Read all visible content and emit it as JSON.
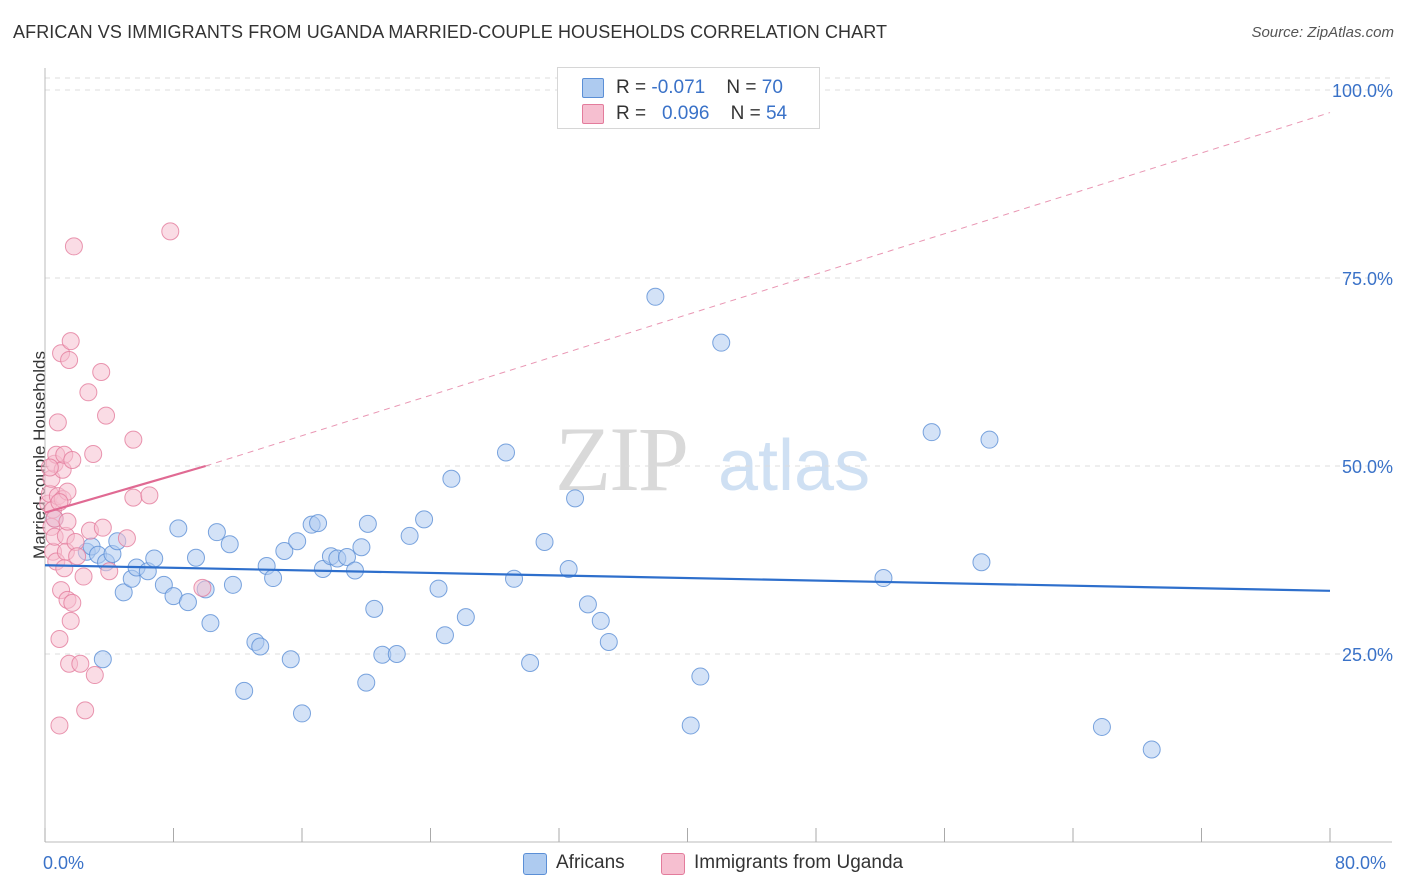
{
  "title": "AFRICAN VS IMMIGRANTS FROM UGANDA MARRIED-COUPLE HOUSEHOLDS CORRELATION CHART",
  "source": "Source: ZipAtlas.com",
  "watermark": {
    "zip": "ZIP",
    "atlas": "atlas"
  },
  "legend_top": [
    {
      "r_label": "R = ",
      "r_value": "-0.071",
      "n_label": "N = ",
      "n_value": "70",
      "color": "#aecbf0",
      "border": "#5b8fd6"
    },
    {
      "r_label": "R = ",
      "r_value": "0.096",
      "n_label": "N = ",
      "n_value": "54",
      "color": "#f6bfd0",
      "border": "#e37c9c"
    }
  ],
  "legend_bottom": [
    {
      "label": "Africans",
      "color": "#aecbf0",
      "border": "#5b8fd6"
    },
    {
      "label": "Immigrants from Uganda",
      "color": "#f6bfd0",
      "border": "#e37c9c"
    }
  ],
  "chart_data": {
    "type": "scatter",
    "title": "AFRICAN VS IMMIGRANTS FROM UGANDA MARRIED-COUPLE HOUSEHOLDS CORRELATION CHART",
    "xlabel": "",
    "ylabel": "Married-couple Households",
    "xlim": [
      0,
      80
    ],
    "ylim": [
      0,
      105
    ],
    "x_tick_labels": [
      "0.0%",
      "80.0%"
    ],
    "y_ticks": [
      25,
      50,
      75,
      100
    ],
    "y_tick_labels": [
      "25.0%",
      "50.0%",
      "75.0%",
      "100.0%"
    ],
    "grid": true,
    "legend": "top-center",
    "series": [
      {
        "name": "Africans",
        "color": "#5b8fd6",
        "fill": "#aecbf0",
        "R": -0.071,
        "N": 70,
        "trend": {
          "x": [
            0,
            80
          ],
          "y": [
            36.8,
            33.4
          ],
          "style": "solid",
          "color": "#2e6fcc"
        },
        "points": [
          [
            0.6,
            43.0
          ],
          [
            2.6,
            38.6
          ],
          [
            2.9,
            39.3
          ],
          [
            3.3,
            38.2
          ],
          [
            3.8,
            37.2
          ],
          [
            4.2,
            38.3
          ],
          [
            4.5,
            40.0
          ],
          [
            4.9,
            33.2
          ],
          [
            5.4,
            35.0
          ],
          [
            5.7,
            36.5
          ],
          [
            6.4,
            36.0
          ],
          [
            6.8,
            37.7
          ],
          [
            7.4,
            34.2
          ],
          [
            8.0,
            32.7
          ],
          [
            8.3,
            41.7
          ],
          [
            8.9,
            31.9
          ],
          [
            9.4,
            37.8
          ],
          [
            10.3,
            29.1
          ],
          [
            10.7,
            41.2
          ],
          [
            11.5,
            39.6
          ],
          [
            11.7,
            34.2
          ],
          [
            12.4,
            20.1
          ],
          [
            13.1,
            26.6
          ],
          [
            13.4,
            26.0
          ],
          [
            13.8,
            36.7
          ],
          [
            14.2,
            35.1
          ],
          [
            14.9,
            38.7
          ],
          [
            15.3,
            24.3
          ],
          [
            15.7,
            40.0
          ],
          [
            16.6,
            42.2
          ],
          [
            17.0,
            42.4
          ],
          [
            17.3,
            36.3
          ],
          [
            17.8,
            38.0
          ],
          [
            18.2,
            37.7
          ],
          [
            18.8,
            37.9
          ],
          [
            19.3,
            36.1
          ],
          [
            19.7,
            39.2
          ],
          [
            20.1,
            42.3
          ],
          [
            20.5,
            31.0
          ],
          [
            21.0,
            24.9
          ],
          [
            21.9,
            25.0
          ],
          [
            22.7,
            40.7
          ],
          [
            23.6,
            42.9
          ],
          [
            24.5,
            33.7
          ],
          [
            24.9,
            27.5
          ],
          [
            25.3,
            48.3
          ],
          [
            26.2,
            29.9
          ],
          [
            28.7,
            51.8
          ],
          [
            29.2,
            35.0
          ],
          [
            30.2,
            23.8
          ],
          [
            31.1,
            39.9
          ],
          [
            32.6,
            36.3
          ],
          [
            33.0,
            45.7
          ],
          [
            33.8,
            31.6
          ],
          [
            34.6,
            29.4
          ],
          [
            35.1,
            26.6
          ],
          [
            38.0,
            72.5
          ],
          [
            40.2,
            15.5
          ],
          [
            40.8,
            22.0
          ],
          [
            42.1,
            66.4
          ],
          [
            52.2,
            35.1
          ],
          [
            55.2,
            54.5
          ],
          [
            58.3,
            37.2
          ],
          [
            58.8,
            53.5
          ],
          [
            65.8,
            15.3
          ],
          [
            68.9,
            12.3
          ],
          [
            10.0,
            33.6
          ],
          [
            16.0,
            17.1
          ],
          [
            20.0,
            21.2
          ],
          [
            3.6,
            24.3
          ]
        ]
      },
      {
        "name": "Immigrants from Uganda",
        "color": "#e37c9c",
        "fill": "#f6bfd0",
        "R": 0.096,
        "N": 54,
        "trend": {
          "x": [
            0,
            10
          ],
          "y": [
            43.8,
            50.0
          ],
          "style": "solid",
          "color": "#e06a93",
          "extended": {
            "x": [
              10,
              80
            ],
            "y": [
              50.0,
              97.0
            ],
            "style": "dashed"
          }
        },
        "points": [
          [
            0.2,
            45.0
          ],
          [
            0.3,
            46.3
          ],
          [
            0.4,
            48.3
          ],
          [
            0.4,
            41.9
          ],
          [
            0.5,
            44.2
          ],
          [
            0.5,
            38.6
          ],
          [
            0.6,
            50.3
          ],
          [
            0.6,
            40.6
          ],
          [
            0.7,
            51.5
          ],
          [
            0.7,
            37.3
          ],
          [
            0.8,
            46.0
          ],
          [
            0.8,
            55.8
          ],
          [
            0.9,
            27.0
          ],
          [
            0.9,
            15.5
          ],
          [
            1.0,
            65.0
          ],
          [
            1.0,
            33.5
          ],
          [
            1.1,
            49.5
          ],
          [
            1.1,
            45.6
          ],
          [
            1.2,
            51.5
          ],
          [
            1.3,
            40.7
          ],
          [
            1.3,
            38.6
          ],
          [
            1.4,
            46.6
          ],
          [
            1.4,
            32.2
          ],
          [
            1.5,
            64.1
          ],
          [
            1.5,
            23.7
          ],
          [
            1.6,
            66.6
          ],
          [
            1.6,
            29.4
          ],
          [
            1.7,
            50.8
          ],
          [
            1.7,
            31.8
          ],
          [
            1.8,
            79.2
          ],
          [
            1.9,
            39.9
          ],
          [
            2.2,
            23.7
          ],
          [
            2.4,
            35.3
          ],
          [
            2.5,
            17.5
          ],
          [
            2.7,
            59.8
          ],
          [
            2.8,
            41.4
          ],
          [
            3.0,
            51.6
          ],
          [
            3.1,
            22.2
          ],
          [
            3.5,
            62.5
          ],
          [
            3.6,
            41.8
          ],
          [
            3.8,
            56.7
          ],
          [
            4.0,
            36.0
          ],
          [
            5.1,
            40.4
          ],
          [
            5.5,
            53.5
          ],
          [
            5.5,
            45.8
          ],
          [
            6.5,
            46.1
          ],
          [
            7.8,
            81.2
          ],
          [
            9.8,
            33.8
          ],
          [
            0.3,
            49.8
          ],
          [
            0.6,
            43.0
          ],
          [
            1.2,
            36.4
          ],
          [
            2.0,
            38.0
          ],
          [
            0.9,
            45.2
          ],
          [
            1.4,
            42.6
          ]
        ]
      }
    ]
  }
}
